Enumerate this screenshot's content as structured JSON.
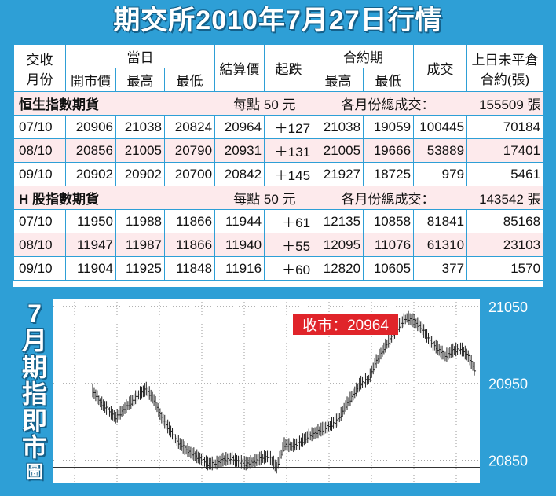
{
  "title": "期交所2010年7月27日行情",
  "header": {
    "month_col": [
      "交收",
      "月份"
    ],
    "day_group": "當日",
    "day_cols": [
      "開市價",
      "最高",
      "最低"
    ],
    "settle": "結算價",
    "change": "起跌",
    "contract_group": "合約期",
    "contract_cols": [
      "最高",
      "最低"
    ],
    "volume": "成交",
    "oi": [
      "上日未平倉",
      "合約(張)"
    ]
  },
  "sections": [
    {
      "name": "恒生指數期貨",
      "per_point": "每點 50 元",
      "total_label": "各月份總成交：",
      "total": "155509 張",
      "rows": [
        [
          "07/10",
          "20906",
          "21038",
          "20824",
          "20964",
          "＋127",
          "21038",
          "19059",
          "100445",
          "70184"
        ],
        [
          "08/10",
          "20856",
          "21005",
          "20790",
          "20931",
          "＋131",
          "21005",
          "19666",
          "53889",
          "17401"
        ],
        [
          "09/10",
          "20902",
          "20902",
          "20700",
          "20842",
          "＋145",
          "21927",
          "18725",
          "979",
          "5461"
        ]
      ]
    },
    {
      "name": "H 股指數期貨",
      "per_point": "每點 50 元",
      "total_label": "各月份總成交：",
      "total": "143542 張",
      "rows": [
        [
          "07/10",
          "11950",
          "11988",
          "11866",
          "11944",
          "＋61",
          "12135",
          "10858",
          "81841",
          "85168"
        ],
        [
          "08/10",
          "11947",
          "11987",
          "11866",
          "11940",
          "＋55",
          "12095",
          "11076",
          "61310",
          "23103"
        ],
        [
          "09/10",
          "11904",
          "11925",
          "11848",
          "11916",
          "＋60",
          "12820",
          "10605",
          "377",
          "1570"
        ]
      ]
    }
  ],
  "chart_label": [
    "7",
    "月",
    "期",
    "指",
    "即",
    "市",
    "圖"
  ],
  "chart_data": {
    "type": "line",
    "annotation": "收市：20964",
    "ylim": [
      20820,
      21060
    ],
    "yticks": [
      21050,
      20950,
      20850
    ],
    "reference_line": 20841,
    "grid": true,
    "accent": "#e0242a",
    "x": [
      0,
      2,
      4,
      6,
      8,
      10,
      12,
      14,
      16,
      18,
      20,
      22,
      24,
      26,
      28,
      30,
      32,
      34,
      36,
      38,
      40,
      42,
      44,
      46,
      48,
      50,
      52,
      54,
      56,
      58,
      60,
      62,
      64,
      66,
      68,
      70,
      72,
      74,
      76,
      78,
      80,
      82,
      84,
      86,
      88,
      90,
      92,
      94,
      96,
      98,
      100
    ],
    "y": [
      20940,
      20925,
      20915,
      20905,
      20915,
      20925,
      20935,
      20942,
      20928,
      20905,
      20890,
      20875,
      20865,
      20858,
      20852,
      20845,
      20845,
      20850,
      20852,
      20848,
      20845,
      20848,
      20852,
      20855,
      20840,
      20870,
      20868,
      20872,
      20880,
      20885,
      20890,
      20895,
      20902,
      20920,
      20935,
      20950,
      20955,
      20978,
      20995,
      21010,
      21025,
      21035,
      21030,
      21020,
      21005,
      20995,
      20985,
      20992,
      20995,
      20985,
      20964
    ]
  }
}
